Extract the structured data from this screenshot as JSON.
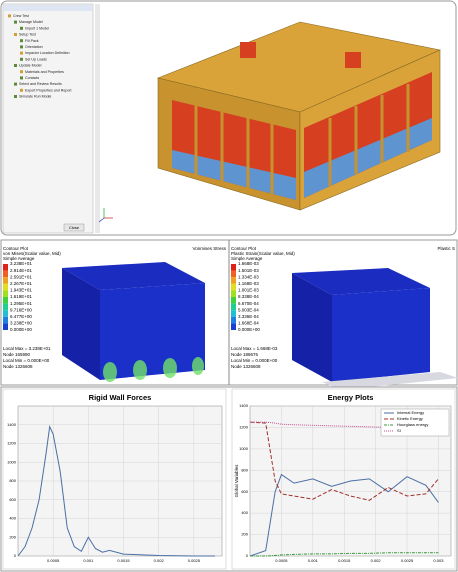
{
  "tree": {
    "items": [
      "Crew Test",
      "Manage Model",
      "Import 1 Model",
      "Setup Test",
      "Fill Pack",
      "Orientation",
      "Impactor Location Definition",
      "Set Up Loads",
      "Update Model",
      "Materials and Properties",
      "Contacts",
      "Select and Review Results",
      "Export Properties and Report",
      "Simulate Run Model"
    ],
    "button": "Close"
  },
  "contour_plots": [
    {
      "title": "Contour Plot",
      "field": "von Mises(Scalar value, Mid)",
      "averaging": "Simple Average",
      "viewport_label": "Vonmises Stress",
      "legend": [
        "3.238E+01",
        "2.914E+01",
        "2.591E+01",
        "2.267E+01",
        "1.943E+01",
        "1.619E+01",
        "1.295E+01",
        "9.716E+00",
        "6.477E+00",
        "3.238E+00",
        "0.000E+00"
      ],
      "footer": [
        "Local Max = 3.238E+01",
        "Node 165990",
        "Local Min = 0.000E+00",
        "Node 1326608"
      ]
    },
    {
      "title": "Contour Plot",
      "field": "Plastic Strain(Scalar value, Mid)",
      "averaging": "Simple Average",
      "viewport_label": "Plastic S",
      "legend": [
        "1.668E-03",
        "1.501E-03",
        "1.334E-03",
        "1.168E-03",
        "1.001E-03",
        "8.338E-04",
        "6.670E-04",
        "5.003E-04",
        "3.336E-04",
        "1.668E-04",
        "0.000E+00"
      ],
      "footer": [
        "Local Max = 1.668E-03",
        "Node 188676",
        "Local Min = 0.000E+00",
        "Node 1326608"
      ]
    }
  ],
  "chart_data": [
    {
      "type": "line",
      "title": "Rigid Wall Forces",
      "color": "#4a6fa5",
      "x": [
        0,
        0.0001,
        0.0002,
        0.0003,
        0.0004,
        0.00045,
        0.0005,
        0.0006,
        0.0007,
        0.0008,
        0.0009,
        0.001,
        0.0011,
        0.0012,
        0.0013,
        0.0015,
        0.002,
        0.0025,
        0.0028
      ],
      "values": [
        0,
        100,
        300,
        600,
        1100,
        1380,
        1300,
        900,
        300,
        100,
        50,
        200,
        80,
        40,
        60,
        20,
        5,
        0,
        0
      ],
      "xlim": [
        0,
        0.0029
      ],
      "ylim": [
        0,
        1600
      ],
      "xticks": [
        0.0005,
        0.001,
        0.0015,
        0.002,
        0.0025
      ],
      "yticks": [
        0,
        200,
        400,
        600,
        800,
        1000,
        1200,
        1400
      ],
      "grid": true
    },
    {
      "type": "line",
      "title": "Energy Plots",
      "y_label": "Global Variables",
      "x": [
        0,
        0.00025,
        0.0004,
        0.0005,
        0.0007,
        0.001,
        0.0013,
        0.0016,
        0.0019,
        0.0022,
        0.0025,
        0.0028,
        0.003
      ],
      "series": [
        {
          "name": "Internal Energy",
          "color": "#4a6fa5",
          "dash": "none",
          "values": [
            0,
            50,
            600,
            760,
            680,
            720,
            650,
            700,
            720,
            600,
            740,
            660,
            500
          ]
        },
        {
          "name": "Kinetic Energy",
          "color": "#a0302a",
          "dash": "4 2",
          "values": [
            1250,
            1240,
            700,
            580,
            560,
            530,
            620,
            560,
            520,
            640,
            560,
            580,
            720
          ]
        },
        {
          "name": "Hourglass energy",
          "color": "#3a9a3a",
          "dash": "3 1 1 1",
          "values": [
            0,
            0,
            5,
            10,
            15,
            20,
            20,
            25,
            25,
            30,
            30,
            30,
            30
          ]
        },
        {
          "name": "SI",
          "color": "#c05090",
          "dash": "1 1",
          "values": [
            1250,
            1250,
            1240,
            1230,
            1225,
            1220,
            1215,
            1210,
            1205,
            1200,
            1200,
            1195,
            1190
          ]
        }
      ],
      "xlim": [
        0,
        0.0032
      ],
      "ylim": [
        0,
        1400
      ],
      "xticks": [
        0.0005,
        0.001,
        0.0015,
        0.002,
        0.0025,
        0.003
      ],
      "yticks": [
        0,
        200,
        400,
        600,
        800,
        1000,
        1200,
        1400
      ],
      "grid": true,
      "legend": "upper-right"
    }
  ]
}
